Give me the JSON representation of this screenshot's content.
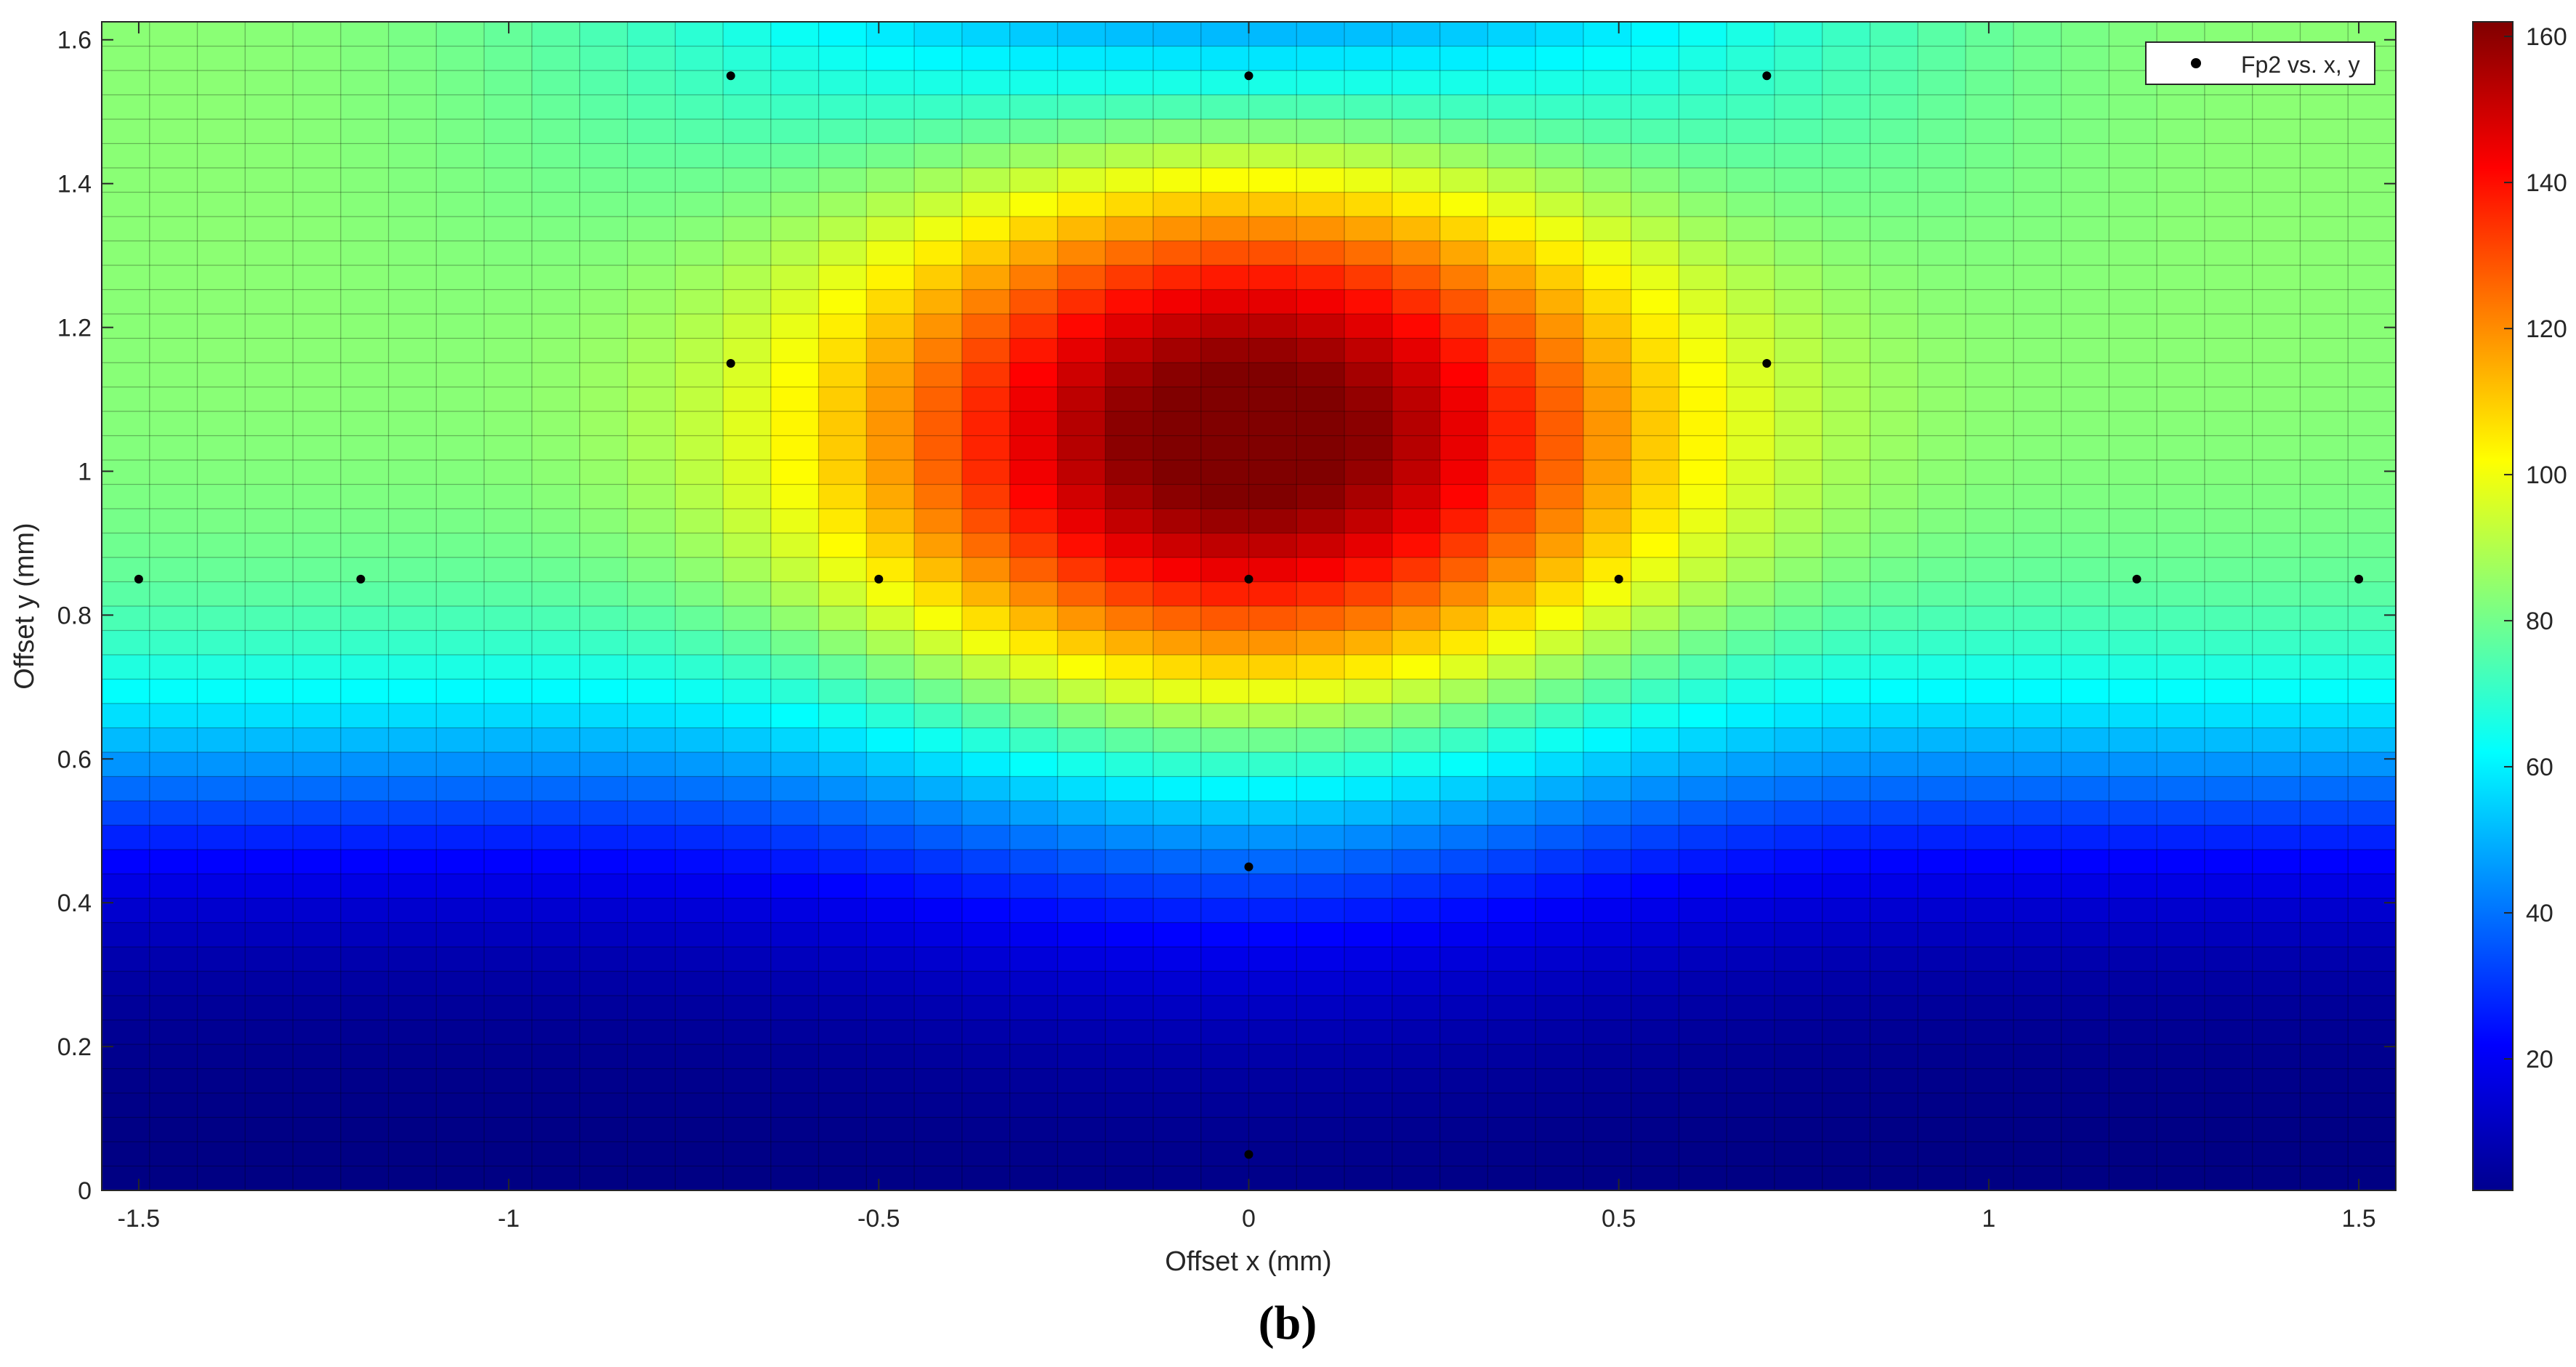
{
  "chart_data": {
    "type": "heatmap",
    "xlabel": "Offset x (mm)",
    "ylabel": "Offset y (mm)",
    "xlim": [
      -1.55,
      1.55
    ],
    "ylim": [
      0,
      1.625
    ],
    "x_ticks": [
      -1.5,
      -1,
      -0.5,
      0,
      0.5,
      1,
      1.5
    ],
    "x_tick_labels": [
      "-1.5",
      "-1",
      "-0.5",
      "0",
      "0.5",
      "1",
      "1.5"
    ],
    "y_ticks": [
      0,
      0.2,
      0.4,
      0.6,
      0.8,
      1,
      1.2,
      1.4,
      1.6
    ],
    "y_tick_labels": [
      "0",
      "0.2",
      "0.4",
      "0.6",
      "0.8",
      "1",
      "1.2",
      "1.4",
      "1.6"
    ],
    "grid": {
      "x_cells": 48,
      "y_cells": 48,
      "description": "interpolated surface of Fp2 over x,y; peak ~162 near (0, 1.05), minimum ~2 at bottom corners"
    },
    "colorbar": {
      "colormap": "jet",
      "range": [
        2,
        162
      ],
      "ticks": [
        20,
        40,
        60,
        80,
        100,
        120,
        140,
        160
      ],
      "tick_labels": [
        "20",
        "40",
        "60",
        "80",
        "100",
        "120",
        "140",
        "160"
      ]
    },
    "series": [
      {
        "name": "Fp2 vs. x, y",
        "type": "scatter",
        "marker_color": "#000000",
        "points": [
          {
            "x": -0.7,
            "y": 1.55
          },
          {
            "x": 0,
            "y": 1.55
          },
          {
            "x": 0.7,
            "y": 1.55
          },
          {
            "x": -0.7,
            "y": 1.15
          },
          {
            "x": 0.7,
            "y": 1.15
          },
          {
            "x": -1.5,
            "y": 0.85
          },
          {
            "x": -1.2,
            "y": 0.85
          },
          {
            "x": -0.5,
            "y": 0.85
          },
          {
            "x": 0,
            "y": 0.85
          },
          {
            "x": 0.5,
            "y": 0.85
          },
          {
            "x": 1.2,
            "y": 0.85
          },
          {
            "x": 1.5,
            "y": 0.85
          },
          {
            "x": 0,
            "y": 0.45
          },
          {
            "x": 0,
            "y": 0.05
          }
        ]
      }
    ],
    "legend": {
      "position": "top-right",
      "entries": [
        "Fp2 vs. x, y"
      ]
    },
    "panel_label": "(b)"
  }
}
